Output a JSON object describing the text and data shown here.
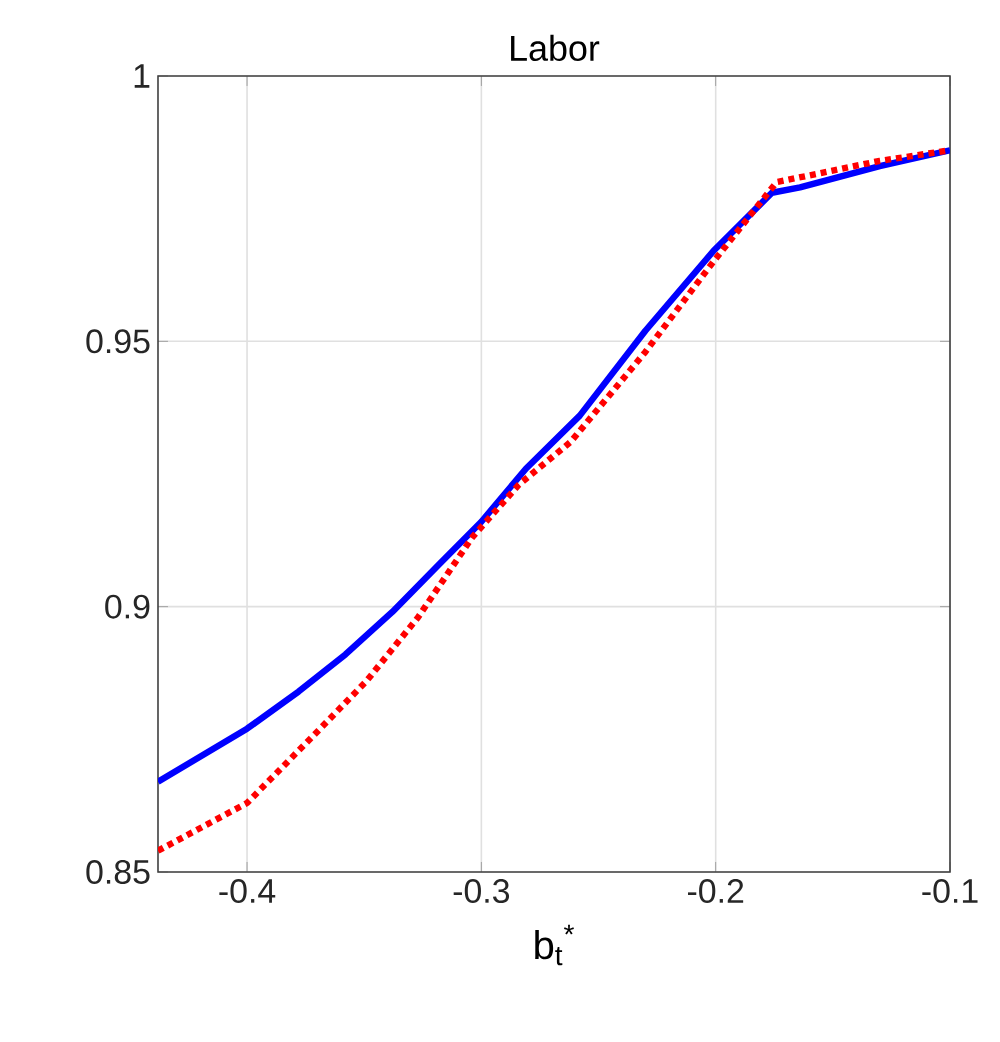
{
  "chart_data": {
    "type": "line",
    "title": "Labor",
    "xlabel": "b$_{t}$$^{*}$",
    "xlim": [
      -0.438,
      -0.1
    ],
    "xticks": [
      -0.4,
      -0.3,
      -0.2,
      -0.1
    ],
    "ylim": [
      0.85,
      1
    ],
    "yticks": [
      0.85,
      0.9,
      0.95,
      1
    ],
    "grid": true,
    "series": [
      {
        "color": "#0000ff",
        "line_style": "solid",
        "x": [
          -0.438,
          -0.4,
          -0.378,
          -0.358,
          -0.338,
          -0.318,
          -0.3,
          -0.281,
          -0.258,
          -0.23,
          -0.201,
          -0.176,
          -0.164,
          -0.13,
          -0.1
        ],
        "values": [
          0.867,
          0.877,
          0.884,
          0.891,
          0.899,
          0.908,
          0.916,
          0.926,
          0.936,
          0.952,
          0.967,
          0.978,
          0.979,
          0.983,
          0.986
        ]
      },
      {
        "color": "#ff0000",
        "line_style": "dotted",
        "x": [
          -0.438,
          -0.4,
          -0.371,
          -0.349,
          -0.327,
          -0.304,
          -0.284,
          -0.262,
          -0.23,
          -0.201,
          -0.174,
          -0.13,
          -0.1
        ],
        "values": [
          0.854,
          0.863,
          0.876,
          0.886,
          0.898,
          0.913,
          0.923,
          0.931,
          0.948,
          0.965,
          0.98,
          0.984,
          0.986
        ]
      }
    ]
  }
}
